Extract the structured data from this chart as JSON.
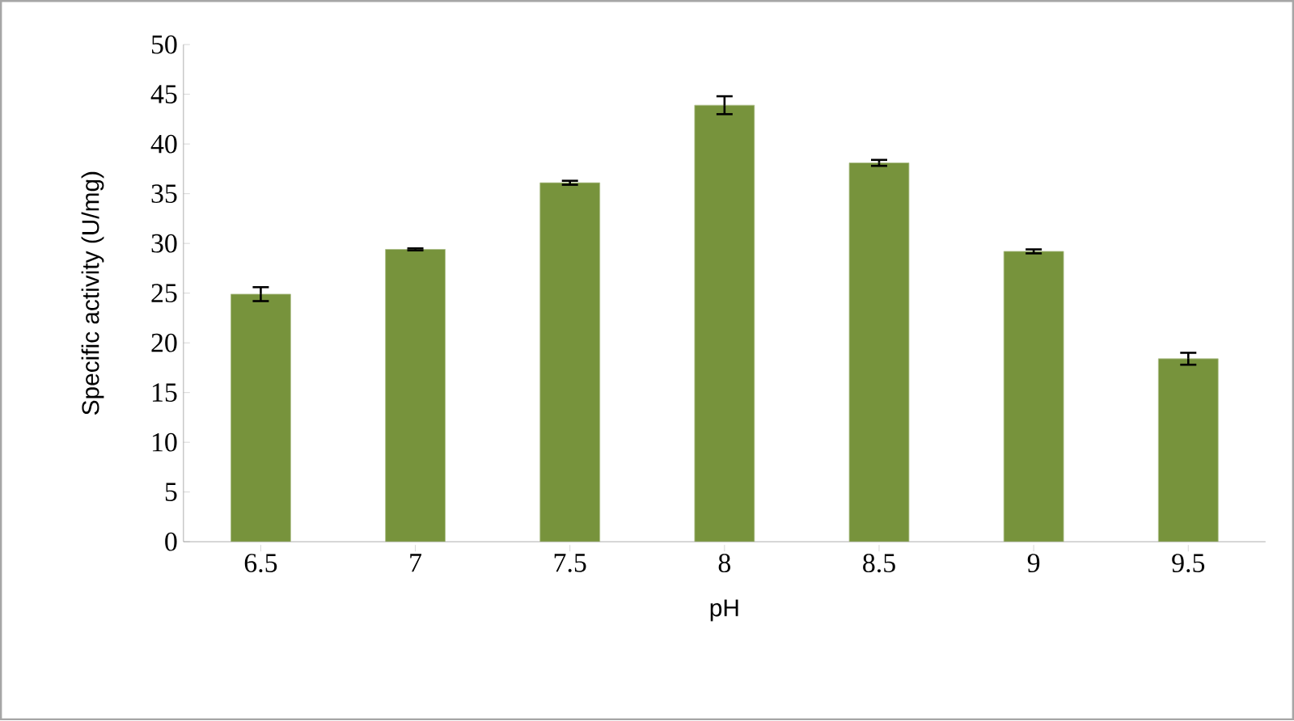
{
  "chart_data": {
    "type": "bar",
    "xlabel": "pH",
    "ylabel": "Specific activity (U/mg)",
    "categories": [
      "6.5",
      "7",
      "7.5",
      "8",
      "8.5",
      "9",
      "9.5"
    ],
    "values": [
      24.9,
      29.4,
      36.1,
      43.9,
      38.1,
      29.2,
      18.4
    ],
    "errors": [
      0.7,
      0.1,
      0.2,
      0.9,
      0.3,
      0.2,
      0.6
    ],
    "color": "#77933c",
    "ylim": [
      0,
      50
    ],
    "yticks": [
      0,
      5,
      10,
      15,
      20,
      25,
      30,
      35,
      40,
      45,
      50
    ],
    "grid": false
  }
}
